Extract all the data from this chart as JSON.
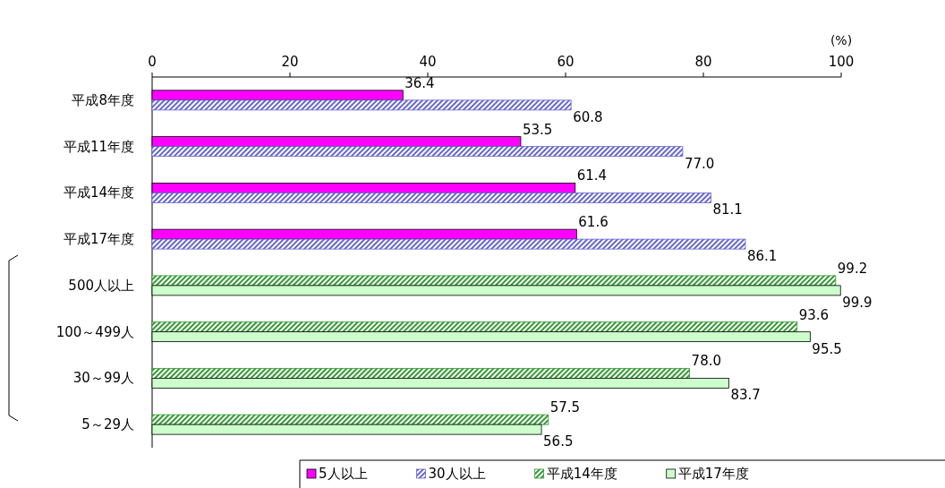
{
  "chart_data": {
    "type": "bar",
    "orientation": "horizontal",
    "xlabel": "(%)",
    "categories": [
      "平成8年度",
      "平成11年度",
      "平成14年度",
      "平成17年度",
      "500人以上",
      "100～499人",
      "30～99人",
      "5～29人"
    ],
    "series": [
      {
        "name": "5人以上",
        "color": "#ff00ff",
        "values": [
          36.4,
          53.5,
          61.4,
          61.6,
          null,
          null,
          null,
          null
        ],
        "value_labels": [
          "36.4",
          "53.5",
          "61.4",
          "61.6",
          null,
          null,
          null,
          null
        ]
      },
      {
        "name": "30人以上",
        "color": "#6666cc",
        "values": [
          60.8,
          77.0,
          81.1,
          86.1,
          null,
          null,
          null,
          null
        ],
        "value_labels": [
          "60.8",
          "77.0",
          "81.1",
          "86.1",
          null,
          null,
          null,
          null
        ]
      },
      {
        "name": "平成14年度",
        "color": "#339933",
        "values": [
          null,
          null,
          null,
          null,
          99.2,
          93.6,
          78.0,
          57.5
        ],
        "value_labels": [
          null,
          null,
          null,
          null,
          "99.2",
          "93.6",
          "78.0",
          "57.5"
        ]
      },
      {
        "name": "平成17年度",
        "color": "#ccffcc",
        "values": [
          null,
          null,
          null,
          null,
          99.9,
          95.5,
          83.7,
          56.5
        ],
        "value_labels": [
          null,
          null,
          null,
          null,
          "99.9",
          "95.5",
          "83.7",
          "56.5"
        ]
      }
    ],
    "xlim": [
      0,
      100
    ],
    "xticks": [
      0,
      20,
      40,
      60,
      80,
      100
    ],
    "grid": false,
    "legend": "bottom"
  }
}
